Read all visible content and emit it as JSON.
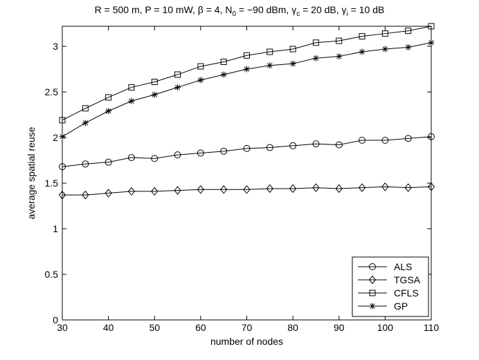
{
  "chart_data": {
    "type": "line",
    "title": {
      "parts": [
        {
          "t": "R = 500 m, P = 10 mW, β = 4, N"
        },
        {
          "t": "0",
          "sub": true
        },
        {
          "t": " = −90 dBm, γ"
        },
        {
          "t": "c",
          "sub": true
        },
        {
          "t": " = 20 dB, γ"
        },
        {
          "t": "i",
          "sub": true
        },
        {
          "t": " = 10 dB"
        }
      ]
    },
    "xlabel": "number of nodes",
    "ylabel": "average spatial reuse",
    "xlim": [
      30,
      110
    ],
    "ylim": [
      0,
      3.22
    ],
    "xticks": [
      30,
      40,
      50,
      60,
      70,
      80,
      90,
      100,
      110
    ],
    "xtick_labels": [
      "30",
      "40",
      "50",
      "60",
      "70",
      "80",
      "90",
      "100",
      "110"
    ],
    "yticks": [
      0,
      0.5,
      1,
      1.5,
      2,
      2.5,
      3
    ],
    "ytick_labels": [
      "0",
      "0.5",
      "1",
      "1.5",
      "2",
      "2.5",
      "3"
    ],
    "grid": false,
    "legend_position": "bottom-right",
    "x": [
      30,
      35,
      40,
      45,
      50,
      55,
      60,
      65,
      70,
      75,
      80,
      85,
      90,
      95,
      100,
      105,
      110
    ],
    "series": [
      {
        "name": "ALS",
        "marker": "circle",
        "values": [
          1.68,
          1.71,
          1.73,
          1.78,
          1.77,
          1.81,
          1.83,
          1.85,
          1.88,
          1.89,
          1.91,
          1.93,
          1.92,
          1.97,
          1.97,
          1.99,
          2.01
        ]
      },
      {
        "name": "TGSA",
        "marker": "diamond",
        "values": [
          1.37,
          1.37,
          1.39,
          1.41,
          1.41,
          1.42,
          1.43,
          1.43,
          1.43,
          1.44,
          1.44,
          1.45,
          1.44,
          1.45,
          1.46,
          1.45,
          1.46
        ]
      },
      {
        "name": "CFLS",
        "marker": "square",
        "values": [
          2.19,
          2.32,
          2.44,
          2.55,
          2.61,
          2.69,
          2.78,
          2.83,
          2.9,
          2.94,
          2.97,
          3.04,
          3.06,
          3.11,
          3.14,
          3.17,
          3.22
        ]
      },
      {
        "name": "GP",
        "marker": "star",
        "values": [
          2.01,
          2.16,
          2.29,
          2.4,
          2.47,
          2.55,
          2.63,
          2.69,
          2.75,
          2.79,
          2.81,
          2.87,
          2.89,
          2.94,
          2.97,
          2.99,
          3.04
        ]
      }
    ]
  }
}
